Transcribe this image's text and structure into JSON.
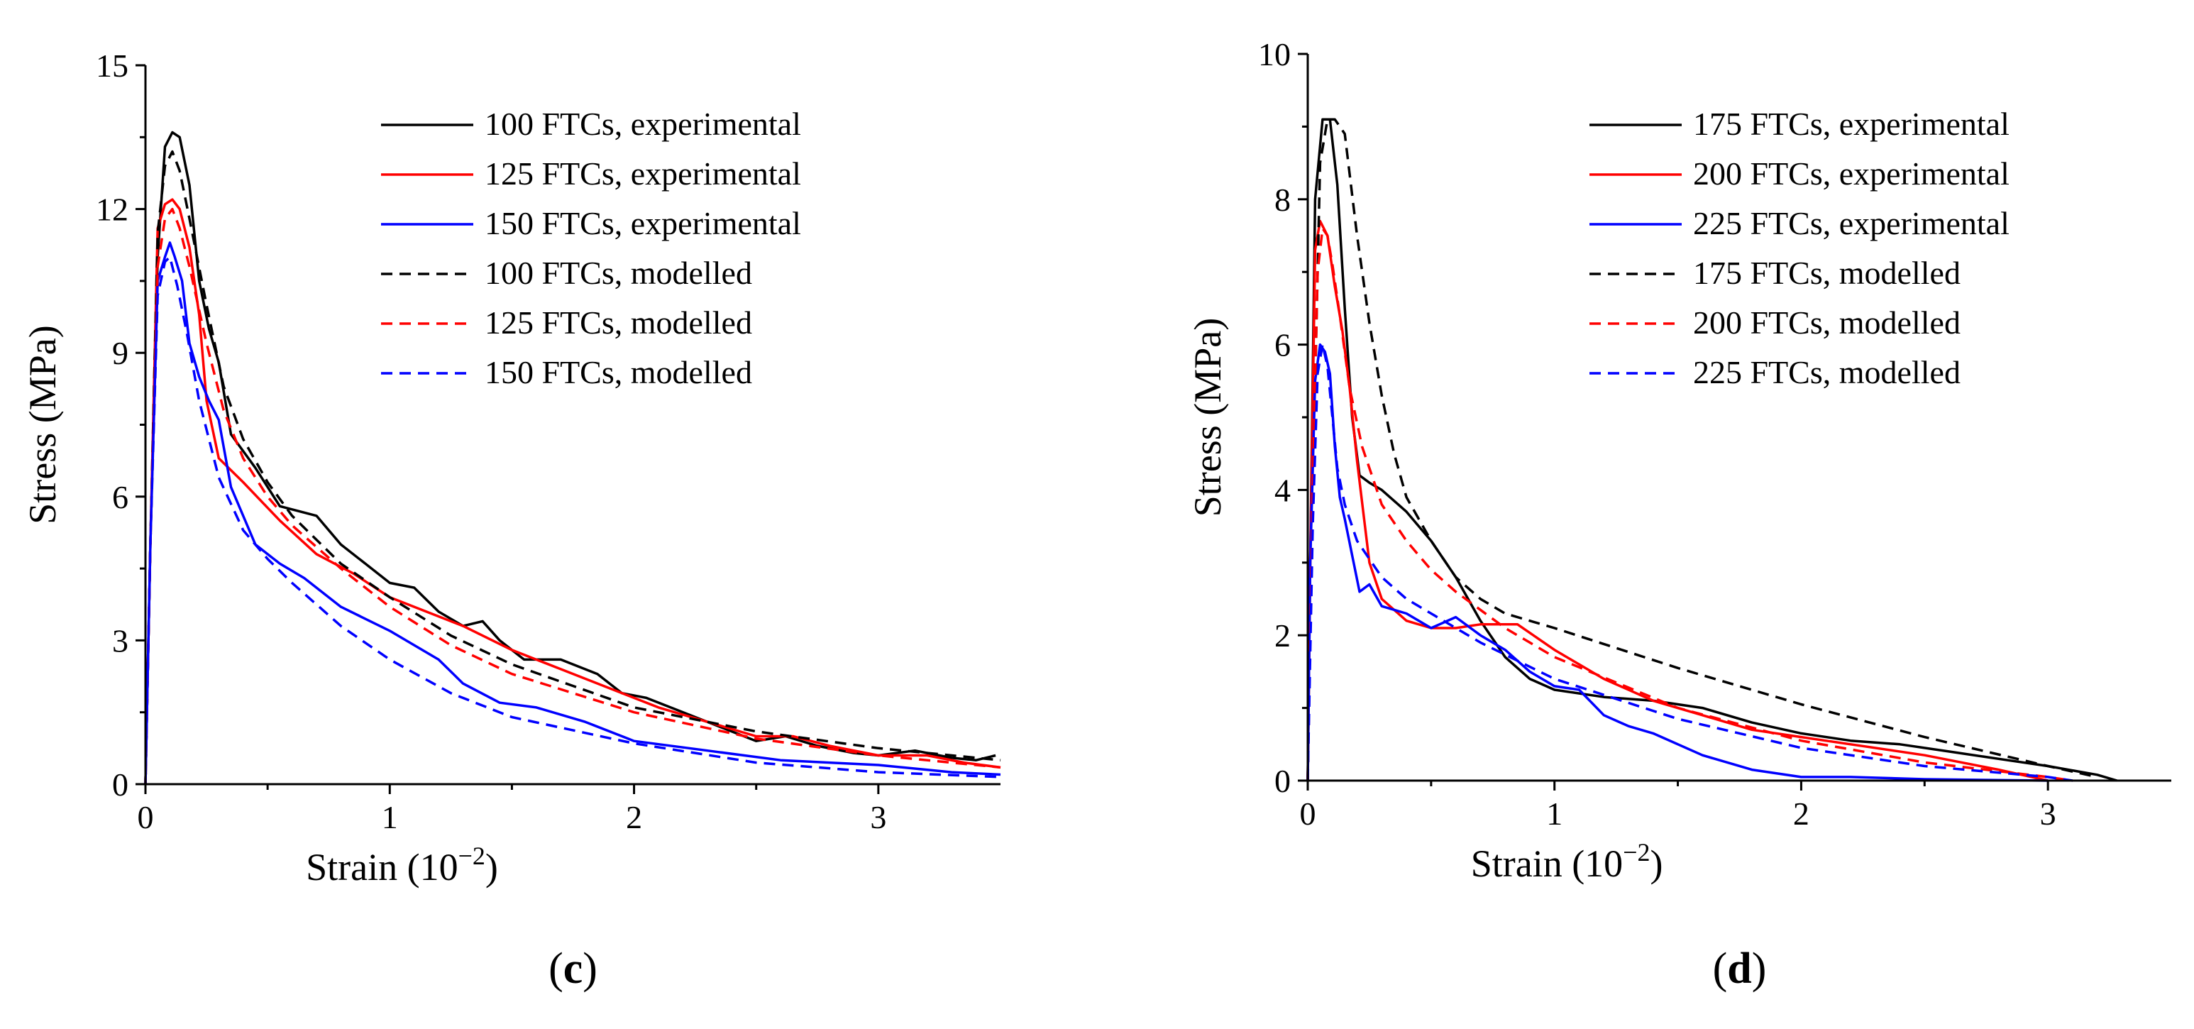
{
  "chart_data": [
    {
      "type": "line",
      "panel_label": "c",
      "xlabel": "Strain (10",
      "xlabel_exp": "−2",
      "xlabel_close": ")",
      "ylabel": "Stress (MPa)",
      "xlim": [
        0,
        3.5
      ],
      "ylim": [
        0,
        15
      ],
      "xticks": [
        0,
        1,
        2,
        3
      ],
      "yticks": [
        0,
        3,
        6,
        9,
        12,
        15
      ],
      "legend_position": "top-right",
      "series": [
        {
          "name": "100 FTCs, experimental",
          "color": "#000000",
          "dashed": false,
          "x": [
            0,
            0.02,
            0.05,
            0.08,
            0.11,
            0.14,
            0.18,
            0.22,
            0.26,
            0.3,
            0.35,
            0.45,
            0.55,
            0.7,
            0.8,
            0.9,
            1.0,
            1.1,
            1.2,
            1.3,
            1.38,
            1.45,
            1.55,
            1.7,
            1.85,
            1.95,
            2.05,
            2.15,
            2.3,
            2.5,
            2.62,
            2.75,
            2.9,
            3.0,
            3.15,
            3.3,
            3.4,
            3.48
          ],
          "y": [
            0,
            5,
            11,
            13.3,
            13.6,
            13.5,
            12.5,
            10.5,
            9.5,
            8.8,
            7.3,
            6.6,
            5.8,
            5.6,
            5.0,
            4.6,
            4.2,
            4.1,
            3.6,
            3.3,
            3.4,
            3.0,
            2.6,
            2.6,
            2.3,
            1.9,
            1.8,
            1.6,
            1.3,
            0.9,
            1.0,
            0.8,
            0.65,
            0.6,
            0.7,
            0.55,
            0.5,
            0.6
          ]
        },
        {
          "name": "125 FTCs, experimental",
          "color": "#ff0000",
          "dashed": false,
          "x": [
            0,
            0.02,
            0.05,
            0.08,
            0.11,
            0.14,
            0.18,
            0.22,
            0.25,
            0.3,
            0.4,
            0.55,
            0.7,
            0.85,
            1.0,
            1.15,
            1.3,
            1.5,
            1.7,
            1.9,
            2.1,
            2.3,
            2.5,
            2.65,
            2.8,
            3.0,
            3.2,
            3.35,
            3.5
          ],
          "y": [
            0,
            5,
            11.6,
            12.1,
            12.2,
            12.0,
            11.2,
            9.8,
            8.0,
            6.8,
            6.3,
            5.5,
            4.8,
            4.4,
            3.9,
            3.6,
            3.3,
            2.8,
            2.4,
            2.0,
            1.6,
            1.3,
            1.0,
            1.0,
            0.8,
            0.6,
            0.6,
            0.45,
            0.35
          ]
        },
        {
          "name": "150 FTCs, experimental",
          "color": "#0000ff",
          "dashed": false,
          "x": [
            0,
            0.02,
            0.05,
            0.08,
            0.1,
            0.12,
            0.15,
            0.18,
            0.22,
            0.26,
            0.3,
            0.35,
            0.45,
            0.55,
            0.65,
            0.8,
            1.0,
            1.2,
            1.3,
            1.45,
            1.6,
            1.8,
            2.0,
            2.3,
            2.6,
            3.0,
            3.3,
            3.5
          ],
          "y": [
            0,
            5,
            10.5,
            11.0,
            11.3,
            11.0,
            10.5,
            9.2,
            8.5,
            8.0,
            7.6,
            6.2,
            5.0,
            4.6,
            4.3,
            3.7,
            3.2,
            2.6,
            2.1,
            1.7,
            1.6,
            1.3,
            0.9,
            0.7,
            0.5,
            0.4,
            0.25,
            0.2
          ]
        },
        {
          "name": "100 FTCs, modelled",
          "color": "#000000",
          "dashed": true,
          "x": [
            0,
            0.02,
            0.05,
            0.08,
            0.11,
            0.14,
            0.18,
            0.25,
            0.32,
            0.4,
            0.5,
            0.6,
            0.8,
            1.0,
            1.25,
            1.5,
            2.0,
            2.5,
            3.0,
            3.5
          ],
          "y": [
            0,
            5,
            11.5,
            12.9,
            13.2,
            12.8,
            11.8,
            10.0,
            8.3,
            7.2,
            6.3,
            5.6,
            4.6,
            3.9,
            3.1,
            2.5,
            1.6,
            1.1,
            0.75,
            0.5
          ]
        },
        {
          "name": "125 FTCs, modelled",
          "color": "#ff0000",
          "dashed": true,
          "x": [
            0,
            0.02,
            0.05,
            0.08,
            0.11,
            0.14,
            0.18,
            0.25,
            0.32,
            0.4,
            0.5,
            0.6,
            0.8,
            1.0,
            1.25,
            1.5,
            2.0,
            2.5,
            3.0,
            3.5
          ],
          "y": [
            0,
            5,
            10.8,
            11.8,
            12.0,
            11.6,
            10.8,
            9.2,
            7.8,
            6.8,
            6.0,
            5.4,
            4.5,
            3.7,
            2.9,
            2.3,
            1.5,
            0.95,
            0.6,
            0.35
          ]
        },
        {
          "name": "150 FTCs, modelled",
          "color": "#0000ff",
          "dashed": true,
          "x": [
            0,
            0.02,
            0.05,
            0.08,
            0.1,
            0.13,
            0.17,
            0.22,
            0.3,
            0.4,
            0.5,
            0.6,
            0.8,
            1.0,
            1.25,
            1.5,
            2.0,
            2.5,
            3.0,
            3.5
          ],
          "y": [
            0,
            5,
            10.2,
            10.9,
            11.0,
            10.4,
            9.4,
            8.0,
            6.4,
            5.3,
            4.7,
            4.2,
            3.3,
            2.6,
            1.9,
            1.4,
            0.85,
            0.45,
            0.25,
            0.15
          ]
        }
      ]
    },
    {
      "type": "line",
      "panel_label": "d",
      "xlabel": "Strain (10",
      "xlabel_exp": "−2",
      "xlabel_close": ")",
      "ylabel": "Stress (MPa)",
      "xlim": [
        0,
        3.5
      ],
      "ylim": [
        0,
        10
      ],
      "xticks": [
        0,
        1,
        2,
        3
      ],
      "yticks": [
        0,
        2,
        4,
        6,
        8,
        10
      ],
      "legend_position": "top-right",
      "series": [
        {
          "name": "175 FTCs, experimental",
          "color": "#000000",
          "dashed": false,
          "x": [
            0,
            0.01,
            0.03,
            0.06,
            0.09,
            0.12,
            0.15,
            0.18,
            0.21,
            0.25,
            0.3,
            0.4,
            0.5,
            0.6,
            0.7,
            0.8,
            0.9,
            1.0,
            1.2,
            1.4,
            1.6,
            1.8,
            2.0,
            2.2,
            2.4,
            2.6,
            2.8,
            3.0,
            3.2,
            3.28
          ],
          "y": [
            0,
            3,
            8.0,
            9.1,
            9.1,
            8.2,
            6.5,
            5.0,
            4.2,
            4.1,
            4.0,
            3.7,
            3.3,
            2.8,
            2.2,
            1.7,
            1.4,
            1.25,
            1.15,
            1.1,
            1.0,
            0.8,
            0.65,
            0.55,
            0.5,
            0.4,
            0.3,
            0.2,
            0.08,
            0.0
          ]
        },
        {
          "name": "200 FTCs, experimental",
          "color": "#ff0000",
          "dashed": false,
          "x": [
            0,
            0.01,
            0.03,
            0.05,
            0.08,
            0.11,
            0.14,
            0.17,
            0.2,
            0.25,
            0.3,
            0.4,
            0.5,
            0.6,
            0.7,
            0.85,
            1.0,
            1.2,
            1.4,
            1.6,
            1.8,
            2.0,
            2.2,
            2.5,
            2.8,
            3.0
          ],
          "y": [
            0,
            3,
            7.3,
            7.7,
            7.5,
            6.8,
            6.2,
            5.4,
            4.4,
            3.0,
            2.5,
            2.2,
            2.1,
            2.1,
            2.15,
            2.15,
            1.8,
            1.4,
            1.1,
            0.9,
            0.7,
            0.6,
            0.5,
            0.35,
            0.15,
            0.0
          ]
        },
        {
          "name": "225 FTCs, experimental",
          "color": "#0000ff",
          "dashed": false,
          "x": [
            0,
            0.01,
            0.03,
            0.05,
            0.07,
            0.09,
            0.11,
            0.13,
            0.15,
            0.18,
            0.21,
            0.25,
            0.3,
            0.4,
            0.5,
            0.6,
            0.7,
            0.8,
            0.9,
            1.0,
            1.1,
            1.2,
            1.3,
            1.4,
            1.6,
            1.8,
            2.0,
            2.2,
            2.5,
            3.0
          ],
          "y": [
            0,
            3,
            5.5,
            6.0,
            5.9,
            5.6,
            4.6,
            3.9,
            3.6,
            3.1,
            2.6,
            2.7,
            2.4,
            2.3,
            2.1,
            2.25,
            2.0,
            1.8,
            1.5,
            1.3,
            1.25,
            0.9,
            0.75,
            0.65,
            0.35,
            0.15,
            0.05,
            0.05,
            0.02,
            0.0
          ]
        },
        {
          "name": "175 FTCs, modelled",
          "color": "#000000",
          "dashed": true,
          "x": [
            0,
            0.02,
            0.05,
            0.08,
            0.11,
            0.15,
            0.2,
            0.25,
            0.3,
            0.35,
            0.4,
            0.5,
            0.6,
            0.7,
            0.8,
            1.0,
            1.5,
            2.0,
            2.5,
            3.0,
            3.2
          ],
          "y": [
            0,
            4,
            8.5,
            9.1,
            9.1,
            8.9,
            7.5,
            6.3,
            5.3,
            4.5,
            3.9,
            3.3,
            2.8,
            2.5,
            2.3,
            2.1,
            1.55,
            1.05,
            0.6,
            0.2,
            0.05
          ]
        },
        {
          "name": "200 FTCs, modelled",
          "color": "#ff0000",
          "dashed": true,
          "x": [
            0,
            0.02,
            0.04,
            0.06,
            0.08,
            0.1,
            0.13,
            0.17,
            0.22,
            0.3,
            0.4,
            0.5,
            0.6,
            0.8,
            1.0,
            1.5,
            2.0,
            2.5,
            3.0,
            3.1
          ],
          "y": [
            0,
            4,
            7.0,
            7.6,
            7.5,
            7.1,
            6.4,
            5.4,
            4.6,
            3.8,
            3.3,
            2.9,
            2.6,
            2.1,
            1.7,
            1.0,
            0.55,
            0.25,
            0.05,
            0.0
          ]
        },
        {
          "name": "225 FTCs, modelled",
          "color": "#0000ff",
          "dashed": true,
          "x": [
            0,
            0.02,
            0.04,
            0.06,
            0.08,
            0.1,
            0.12,
            0.15,
            0.2,
            0.3,
            0.4,
            0.5,
            0.7,
            1.0,
            1.5,
            2.0,
            2.5,
            3.0,
            3.1
          ],
          "y": [
            0,
            3.5,
            5.6,
            6.0,
            5.7,
            5.0,
            4.3,
            3.8,
            3.3,
            2.8,
            2.5,
            2.3,
            1.9,
            1.4,
            0.85,
            0.45,
            0.2,
            0.05,
            0.0
          ]
        }
      ]
    }
  ]
}
